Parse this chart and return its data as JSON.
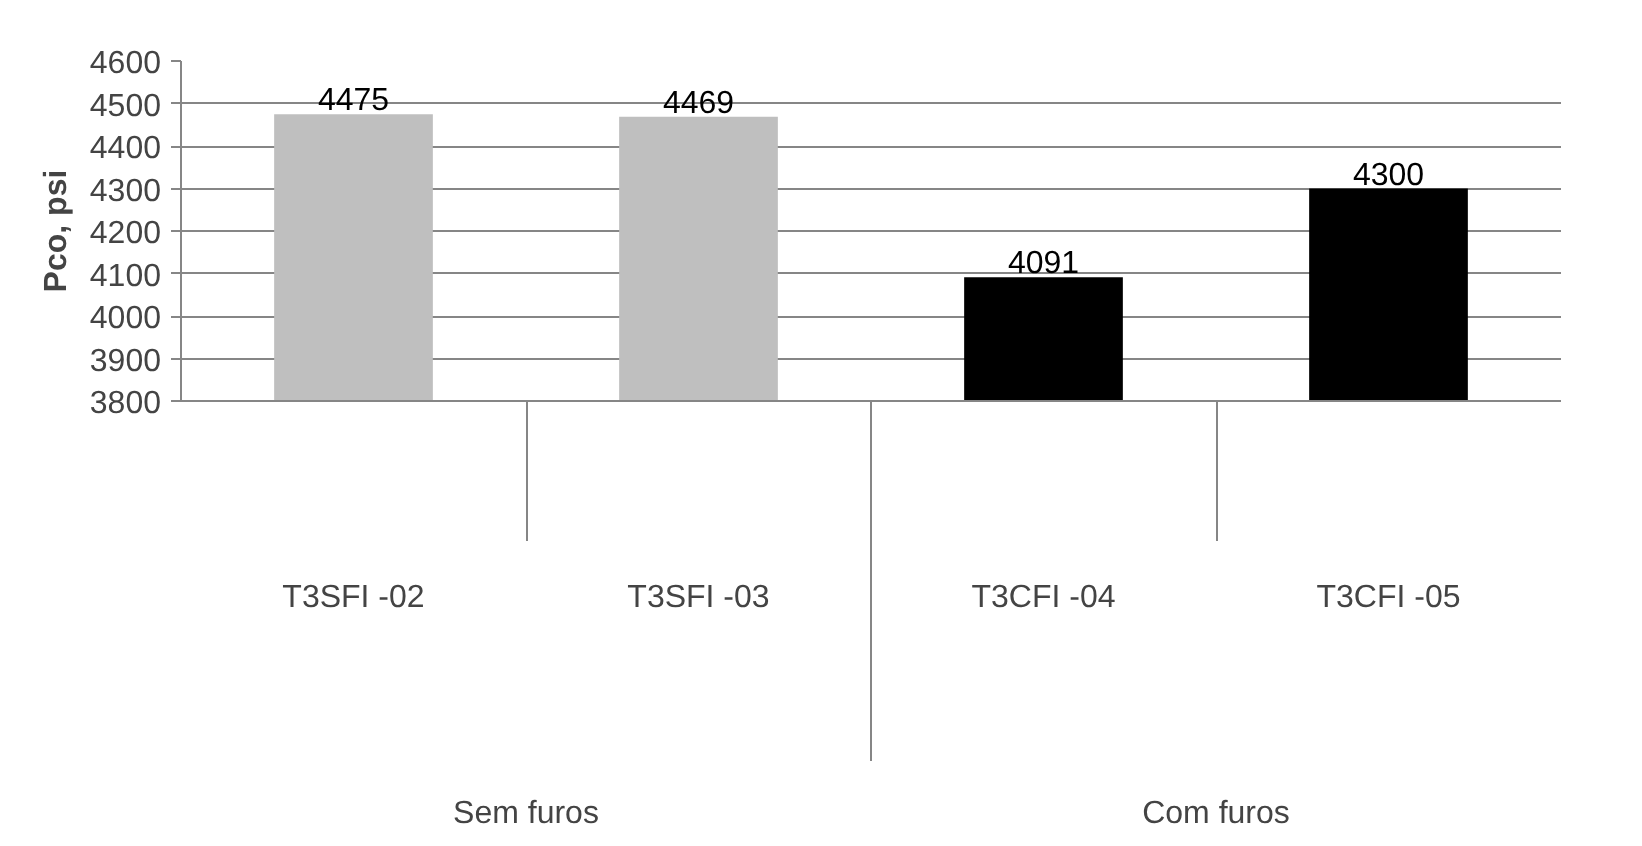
{
  "chart_data": {
    "type": "bar",
    "ylabel": "Pco, psi",
    "categories": [
      "T3SFI -02",
      "T3SFI -03",
      "T3CFI -04",
      "T3CFI -05"
    ],
    "values": [
      4475,
      4469,
      4091,
      4300
    ],
    "colors": [
      "#bfbfbf",
      "#bfbfbf",
      "#000000",
      "#000000"
    ],
    "ylim": [
      3800,
      4600
    ],
    "yticks": [
      3800,
      3900,
      4000,
      4100,
      4200,
      4300,
      4400,
      4500,
      4600
    ],
    "grid": "y",
    "data_labels": true,
    "annotations": [
      "Sem furos",
      "Com furos"
    ]
  }
}
